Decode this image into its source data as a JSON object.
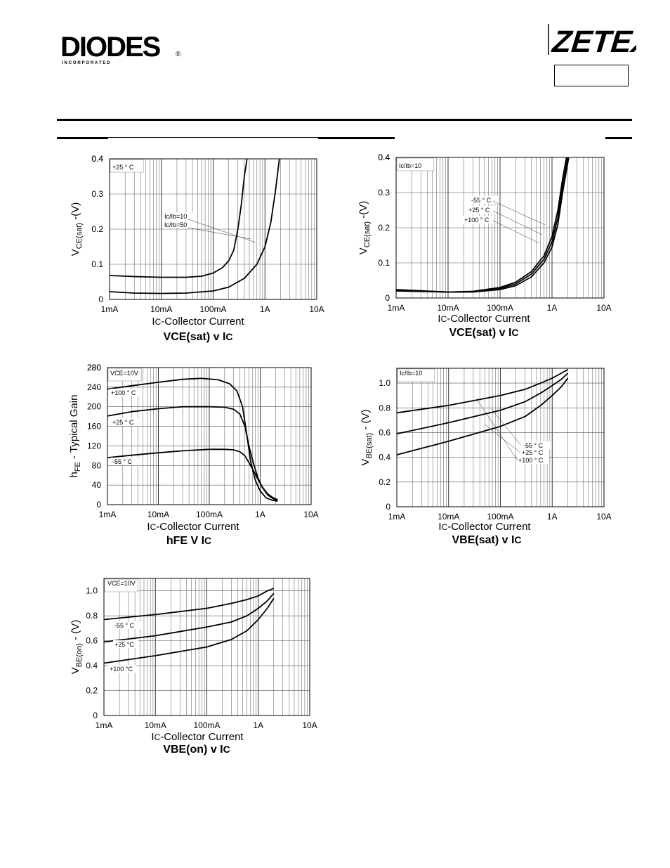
{
  "header": {
    "left_logo": {
      "text": "DIODES",
      "subtext": "I N C O R P O R A T E D",
      "registered": "®",
      "color": "#1b4f9c"
    },
    "right_logo": {
      "text": "ZETEX",
      "color": "#2a5aa8"
    },
    "part_number_box": ""
  },
  "chart_data": [
    {
      "id": "c1",
      "type": "line",
      "x_ticks": [
        "1mA",
        "10mA",
        "100mA",
        "1A",
        "10A"
      ],
      "y_ticks": [
        "0",
        "0.1",
        "0.2",
        "0.3",
        "0.4"
      ],
      "ylim": [
        0,
        0.4
      ],
      "xscale": "log",
      "grid": true,
      "ylabel": {
        "main": "V",
        "sub": "CE(sat)",
        "rest": " -(V)"
      },
      "xlabel": {
        "main": "I",
        "sub": "C",
        "rest": "-Collector Current"
      },
      "title": {
        "a": "VCE(sat) v I",
        "b": "C"
      },
      "legend": [
        "+25 ° C"
      ],
      "annotations": [
        "Ic/Ib=10",
        "Ic/Ib=50"
      ],
      "series": [
        {
          "name": "Ic/Ib=50",
          "x": [
            0.001,
            0.003,
            0.01,
            0.03,
            0.06,
            0.1,
            0.15,
            0.2,
            0.25,
            0.3,
            0.35,
            0.4,
            0.45
          ],
          "y": [
            0.068,
            0.065,
            0.063,
            0.063,
            0.066,
            0.075,
            0.09,
            0.11,
            0.14,
            0.2,
            0.27,
            0.35,
            0.42
          ]
        },
        {
          "name": "Ic/Ib=10",
          "x": [
            0.001,
            0.003,
            0.01,
            0.03,
            0.1,
            0.2,
            0.4,
            0.7,
            1.0,
            1.3,
            1.6,
            1.9
          ],
          "y": [
            0.022,
            0.018,
            0.017,
            0.018,
            0.024,
            0.035,
            0.06,
            0.1,
            0.15,
            0.22,
            0.31,
            0.42
          ]
        }
      ]
    },
    {
      "id": "c2",
      "type": "line",
      "x_ticks": [
        "1mA",
        "10mA",
        "100mA",
        "1A",
        "10A"
      ],
      "y_ticks": [
        "0",
        "0.1",
        "0.2",
        "0.3",
        "0.4"
      ],
      "ylim": [
        0,
        0.4
      ],
      "xscale": "log",
      "grid": true,
      "ylabel": {
        "main": "V",
        "sub": "CE(sat)",
        "rest": " -(V)"
      },
      "xlabel": {
        "main": "I",
        "sub": "C",
        "rest": "-Collector Current"
      },
      "title": {
        "a": "VCE(sat) v I",
        "b": "C"
      },
      "legend": [
        "Ic/Ib=10"
      ],
      "annotations": [
        "-55 ° C",
        "+25 ° C",
        "+100 ° C"
      ],
      "series": [
        {
          "name": "-55 ° C",
          "x": [
            0.001,
            0.01,
            0.03,
            0.1,
            0.2,
            0.4,
            0.7,
            1.0,
            1.3,
            1.6,
            1.9
          ],
          "y": [
            0.02,
            0.017,
            0.019,
            0.03,
            0.045,
            0.075,
            0.12,
            0.175,
            0.25,
            0.34,
            0.42
          ]
        },
        {
          "name": "+25 ° C",
          "x": [
            0.001,
            0.01,
            0.03,
            0.1,
            0.2,
            0.4,
            0.7,
            1.0,
            1.3,
            1.6,
            2.0
          ],
          "y": [
            0.022,
            0.017,
            0.018,
            0.027,
            0.04,
            0.068,
            0.11,
            0.16,
            0.23,
            0.32,
            0.42
          ]
        },
        {
          "name": "+100 ° C",
          "x": [
            0.001,
            0.01,
            0.03,
            0.1,
            0.2,
            0.4,
            0.7,
            1.0,
            1.3,
            1.6,
            2.1
          ],
          "y": [
            0.024,
            0.017,
            0.017,
            0.024,
            0.035,
            0.06,
            0.1,
            0.145,
            0.21,
            0.3,
            0.42
          ]
        }
      ]
    },
    {
      "id": "c3",
      "type": "line",
      "x_ticks": [
        "1mA",
        "10mA",
        "100mA",
        "1A",
        "10A"
      ],
      "y_ticks": [
        "0",
        "40",
        "80",
        "120",
        "160",
        "200",
        "240",
        "280"
      ],
      "ylim": [
        0,
        280
      ],
      "xscale": "log",
      "grid": true,
      "ylabel": {
        "main": "h",
        "sub": "FE",
        "rest": " - Typical Gain"
      },
      "xlabel": {
        "main": "I",
        "sub": "C",
        "rest": "-Collector Current"
      },
      "title": {
        "a": "hFE V I",
        "b": "C"
      },
      "legend": [
        "VCE=10V"
      ],
      "annotations": [
        "+100 ° C",
        "+25 ° C",
        "-55 ° C"
      ],
      "series": [
        {
          "name": "+100 ° C",
          "x": [
            0.001,
            0.003,
            0.01,
            0.03,
            0.07,
            0.15,
            0.25,
            0.35,
            0.45,
            0.55,
            0.65,
            0.8,
            1.0,
            1.3,
            1.7,
            2.2
          ],
          "y": [
            236,
            243,
            250,
            256,
            258,
            255,
            247,
            232,
            200,
            140,
            88,
            50,
            28,
            14,
            9,
            7
          ]
        },
        {
          "name": "+25 ° C",
          "x": [
            0.001,
            0.003,
            0.01,
            0.03,
            0.1,
            0.2,
            0.3,
            0.4,
            0.5,
            0.6,
            0.75,
            0.9,
            1.1,
            1.4,
            1.8,
            2.2
          ],
          "y": [
            181,
            190,
            196,
            200,
            200,
            199,
            195,
            185,
            160,
            120,
            82,
            55,
            35,
            20,
            12,
            9
          ]
        },
        {
          "name": "-55 ° C",
          "x": [
            0.001,
            0.003,
            0.01,
            0.03,
            0.1,
            0.2,
            0.3,
            0.4,
            0.5,
            0.6,
            0.75,
            0.9,
            1.1,
            1.4,
            1.8,
            2.2
          ],
          "y": [
            96,
            101,
            106,
            110,
            113,
            113,
            112,
            108,
            100,
            86,
            68,
            52,
            36,
            22,
            14,
            10
          ]
        }
      ]
    },
    {
      "id": "c4",
      "type": "line",
      "x_ticks": [
        "1mA",
        "10mA",
        "100mA",
        "1A",
        "10A"
      ],
      "y_ticks": [
        "0",
        "0.2",
        "0.4",
        "0.6",
        "0.8",
        "1.0"
      ],
      "ylim": [
        0,
        1.12
      ],
      "xscale": "log",
      "grid": true,
      "ylabel": {
        "main": "V",
        "sub": "BE(sat)",
        "rest": " - (V)"
      },
      "xlabel": {
        "main": "I",
        "sub": "C",
        "rest": "-Collector Current"
      },
      "title": {
        "a": "VBE(sat) v I",
        "b": "C"
      },
      "legend": [
        "Ic/Ib=10"
      ],
      "annotations": [
        "-55 ° C",
        "+25 ° C",
        "+100 ° C"
      ],
      "series": [
        {
          "name": "-55 ° C",
          "x": [
            0.001,
            0.01,
            0.1,
            0.3,
            0.6,
            1.0,
            1.5,
            2.0
          ],
          "y": [
            0.76,
            0.82,
            0.9,
            0.95,
            1.0,
            1.04,
            1.08,
            1.11
          ]
        },
        {
          "name": "+25 ° C",
          "x": [
            0.001,
            0.01,
            0.1,
            0.3,
            0.6,
            1.0,
            1.5,
            2.0
          ],
          "y": [
            0.59,
            0.68,
            0.78,
            0.85,
            0.92,
            0.98,
            1.03,
            1.08
          ]
        },
        {
          "name": "+100 ° C",
          "x": [
            0.001,
            0.01,
            0.1,
            0.3,
            0.6,
            1.0,
            1.5,
            2.0
          ],
          "y": [
            0.42,
            0.53,
            0.65,
            0.73,
            0.82,
            0.9,
            0.97,
            1.04
          ]
        }
      ]
    },
    {
      "id": "c5",
      "type": "line",
      "x_ticks": [
        "1mA",
        "10mA",
        "100mA",
        "1A",
        "10A"
      ],
      "y_ticks": [
        "0",
        "0.2",
        "0.4",
        "0.6",
        "0.8",
        "1.0"
      ],
      "ylim": [
        0,
        1.1
      ],
      "xscale": "log",
      "grid": true,
      "ylabel": {
        "main": "V",
        "sub": "BE(on)",
        "rest": " - (V)"
      },
      "xlabel": {
        "main": "I",
        "sub": "C",
        "rest": "-Collector Current"
      },
      "title": {
        "a": "VBE(on) v I",
        "b": "C"
      },
      "legend": [
        "VCE=10V"
      ],
      "annotations": [
        "-55 ° C",
        "+25 °C",
        "+100 °C"
      ],
      "series": [
        {
          "name": "-55 ° C",
          "x": [
            0.001,
            0.01,
            0.1,
            0.3,
            0.6,
            1.0,
            1.5,
            2.0
          ],
          "y": [
            0.77,
            0.81,
            0.86,
            0.9,
            0.93,
            0.96,
            1.0,
            1.02
          ]
        },
        {
          "name": "+25 ° C",
          "x": [
            0.001,
            0.01,
            0.1,
            0.3,
            0.6,
            1.0,
            1.5,
            2.0
          ],
          "y": [
            0.59,
            0.64,
            0.71,
            0.75,
            0.8,
            0.86,
            0.92,
            0.98
          ]
        },
        {
          "name": "+100 °C",
          "x": [
            0.001,
            0.01,
            0.1,
            0.3,
            0.6,
            1.0,
            1.5,
            2.0
          ],
          "y": [
            0.42,
            0.48,
            0.55,
            0.61,
            0.68,
            0.77,
            0.86,
            0.94
          ]
        }
      ]
    }
  ]
}
